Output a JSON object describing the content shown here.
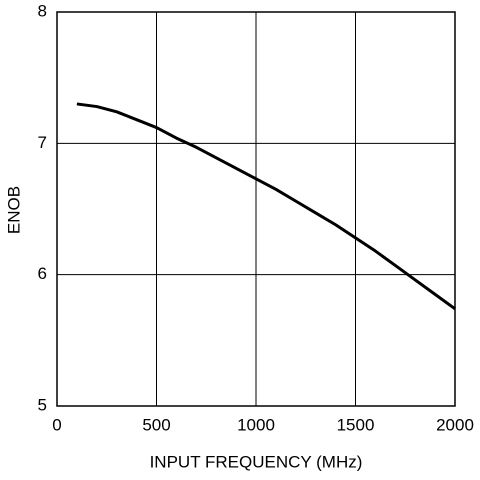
{
  "chart_data": {
    "type": "line",
    "x_label": "INPUT FREQUENCY (MHz)",
    "y_label": "ENOB",
    "x": [
      100,
      200,
      300,
      400,
      500,
      600,
      700,
      800,
      900,
      1000,
      1100,
      1200,
      1300,
      1400,
      1500,
      1600,
      1700,
      1800,
      1900,
      2000
    ],
    "series": [
      {
        "color": "#000000",
        "values": [
          7.3,
          7.28,
          7.24,
          7.18,
          7.12,
          7.04,
          6.97,
          6.89,
          6.81,
          6.73,
          6.65,
          6.56,
          6.47,
          6.38,
          6.28,
          6.18,
          6.07,
          5.96,
          5.85,
          5.74
        ]
      }
    ],
    "xlim": [
      0,
      2000
    ],
    "xticks": [
      0,
      500,
      1000,
      1500,
      2000
    ],
    "ylim": [
      5,
      8
    ],
    "yticks": [
      5,
      6,
      7,
      8
    ],
    "grid": true
  }
}
